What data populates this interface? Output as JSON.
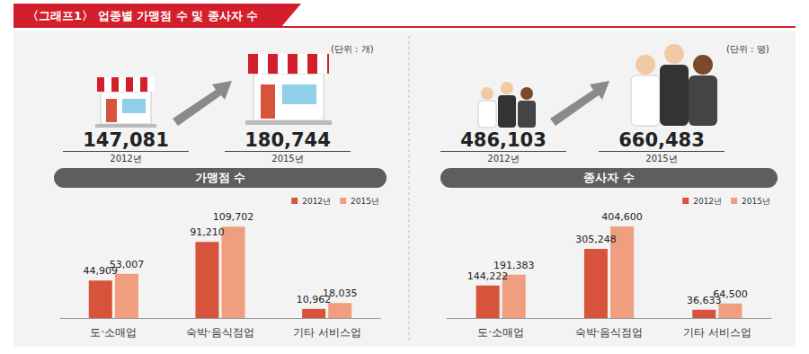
{
  "title": "〈그래프1〉 업종별 가맹점 수 및 종사자 수",
  "panels": [
    {
      "unit": "(단위 : 개)",
      "label": "가맹점 수",
      "totals": [
        {
          "text": "147,081",
          "year": "2012년"
        },
        {
          "text": "180,744",
          "year": "2015년"
        }
      ]
    },
    {
      "unit": "(단위 : 명)",
      "label": "종사자 수",
      "totals": [
        {
          "text": "486,103",
          "year": "2012년"
        },
        {
          "text": "660,483",
          "year": "2015년"
        }
      ]
    }
  ],
  "chart_data": [
    {
      "type": "bar",
      "categories": [
        "도·소매업",
        "숙박·음식점업",
        "기타 서비스업"
      ],
      "series": [
        {
          "name": "2012년",
          "color": "#d8533b",
          "values": [
            44909,
            91210,
            10962
          ],
          "value_labels": [
            "44,909",
            "91,210",
            "10,962"
          ]
        },
        {
          "name": "2015년",
          "color": "#ef9f7f",
          "values": [
            53007,
            109702,
            18035
          ],
          "value_labels": [
            "53,007",
            "109,702",
            "18,035"
          ]
        }
      ],
      "ylim": [
        0,
        125000
      ],
      "grid": false,
      "legend": "upper right",
      "data_labels": true,
      "tick_labels": "x"
    },
    {
      "type": "bar",
      "categories": [
        "도·소매업",
        "숙박·음식점업",
        "기타 서비스업"
      ],
      "series": [
        {
          "name": "2012년",
          "color": "#d8533b",
          "values": [
            144222,
            305248,
            36633
          ],
          "value_labels": [
            "144,222",
            "305,248",
            "36,633"
          ]
        },
        {
          "name": "2015년",
          "color": "#ef9f7f",
          "values": [
            191383,
            404600,
            64500
          ],
          "value_labels": [
            "191,383",
            "404,600",
            "64,500"
          ]
        }
      ],
      "ylim": [
        0,
        460000
      ],
      "grid": false,
      "legend": "upper right",
      "data_labels": true,
      "tick_labels": "x"
    }
  ]
}
